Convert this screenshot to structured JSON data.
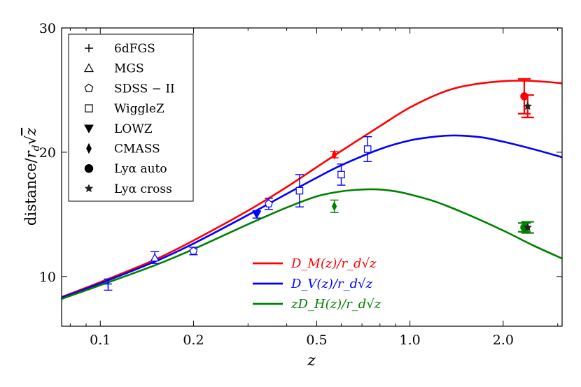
{
  "chart_data": {
    "type": "line",
    "title": "",
    "xlabel": "z",
    "ylabel": "distance/r_d√z",
    "ylabel_prefix": "distance/",
    "ylabel_r": "r",
    "ylabel_d": "d",
    "ylabel_z": "z",
    "xscale": "log",
    "xlim": [
      0.075,
      3.1
    ],
    "ylim": [
      6,
      30
    ],
    "xticks": [
      0.1,
      0.2,
      0.5,
      1.0,
      2.0
    ],
    "xtick_labels": [
      "0.1",
      "0.2",
      "0.5",
      "1.0",
      "2.0"
    ],
    "yticks": [
      10,
      20,
      30
    ],
    "ytick_labels": [
      "10",
      "20",
      "30"
    ],
    "grid": false,
    "colors": {
      "red": "#ff0000",
      "blue": "#0000ff",
      "green": "#008000"
    },
    "series": [
      {
        "name": "D_M(z)/r_d√z",
        "color": "#ff0000",
        "x": [
          0.075,
          0.1,
          0.15,
          0.2,
          0.3,
          0.4,
          0.5,
          0.6,
          0.8,
          1.0,
          1.3,
          1.6,
          2.0,
          2.4,
          2.8,
          3.1
        ],
        "y": [
          8.35,
          9.55,
          11.35,
          12.9,
          15.3,
          17.2,
          18.8,
          20.1,
          22.1,
          23.6,
          24.9,
          25.45,
          25.72,
          25.75,
          25.65,
          25.55
        ]
      },
      {
        "name": "D_V(z)/r_d√z",
        "color": "#0000ff",
        "x": [
          0.075,
          0.1,
          0.15,
          0.2,
          0.3,
          0.4,
          0.5,
          0.6,
          0.8,
          1.0,
          1.2,
          1.4,
          1.7,
          2.0,
          2.5,
          3.1
        ],
        "y": [
          8.3,
          9.45,
          11.2,
          12.65,
          14.95,
          16.65,
          17.95,
          18.95,
          20.25,
          20.95,
          21.25,
          21.35,
          21.2,
          20.85,
          20.25,
          19.6
        ]
      },
      {
        "name": "zD_H(z)/r_d√z",
        "color": "#008000",
        "x": [
          0.075,
          0.1,
          0.15,
          0.2,
          0.3,
          0.4,
          0.5,
          0.6,
          0.7,
          0.8,
          0.9,
          1.0,
          1.2,
          1.5,
          2.0,
          2.5,
          3.1
        ],
        "y": [
          8.2,
          9.3,
          10.9,
          12.2,
          14.2,
          15.55,
          16.45,
          16.85,
          17.0,
          17.0,
          16.85,
          16.6,
          16.05,
          15.1,
          13.7,
          12.5,
          11.45
        ]
      }
    ],
    "measurements": [
      {
        "label": "6dFGS",
        "marker": "plus",
        "z": 0.106,
        "value": 9.4,
        "err_lo": 0.5,
        "err_hi": 0.4,
        "color": "#0000ff"
      },
      {
        "label": "MGS",
        "marker": "triangle",
        "z": 0.15,
        "value": 11.5,
        "err_lo": 0.45,
        "err_hi": 0.5,
        "color": "#0000ff"
      },
      {
        "label": "SDSS − II",
        "marker": "pentagon",
        "z": 0.2,
        "value": 12.05,
        "err_lo": 0.3,
        "err_hi": 0.3,
        "color": "#0000ff"
      },
      {
        "label": "SDSS − II",
        "marker": "pentagon",
        "z": 0.35,
        "value": 15.85,
        "err_lo": 0.45,
        "err_hi": 0.45,
        "color": "#0000ff"
      },
      {
        "label": "WiggleZ",
        "marker": "square",
        "z": 0.44,
        "value": 16.9,
        "err_lo": 1.3,
        "err_hi": 1.3,
        "color": "#0000ff"
      },
      {
        "label": "WiggleZ",
        "marker": "square",
        "z": 0.6,
        "value": 18.2,
        "err_lo": 0.85,
        "err_hi": 0.85,
        "color": "#0000ff"
      },
      {
        "label": "WiggleZ",
        "marker": "square",
        "z": 0.73,
        "value": 20.25,
        "err_lo": 1.0,
        "err_hi": 1.0,
        "color": "#0000ff"
      },
      {
        "label": "LOWZ",
        "marker": "triangle_down",
        "z": 0.32,
        "value": 15.0,
        "err_lo": 0.3,
        "err_hi": 0.3,
        "color": "#0000ff"
      },
      {
        "label": "CMASS",
        "marker": "diamond",
        "z": 0.57,
        "value": 19.8,
        "err_lo": 0.25,
        "err_hi": 0.25,
        "color": "#ff0000"
      },
      {
        "label": "CMASS",
        "marker": "diamond",
        "z": 0.57,
        "value": 15.65,
        "err_lo": 0.5,
        "err_hi": 0.5,
        "color": "#008000"
      },
      {
        "label": "Lyα auto",
        "marker": "circle",
        "z": 2.34,
        "value": 24.5,
        "err_lo": 1.4,
        "err_hi": 1.4,
        "color": "#ff0000"
      },
      {
        "label": "Lyα auto",
        "marker": "circle",
        "z": 2.34,
        "value": 13.95,
        "err_lo": 0.35,
        "err_hi": 0.35,
        "color": "#008000"
      },
      {
        "label": "Lyα cross",
        "marker": "star",
        "z": 2.4,
        "value": 23.7,
        "err_lo": 0.9,
        "err_hi": 0.9,
        "color": "#ff0000"
      },
      {
        "label": "Lyα cross",
        "marker": "star",
        "z": 2.4,
        "value": 13.95,
        "err_lo": 0.45,
        "err_hi": 0.45,
        "color": "#008000"
      }
    ],
    "marker_legend": [
      {
        "marker": "plus",
        "label": "6dFGS"
      },
      {
        "marker": "triangle",
        "label": "MGS"
      },
      {
        "marker": "pentagon",
        "label": "SDSS − II"
      },
      {
        "marker": "square",
        "label": "WiggleZ"
      },
      {
        "marker": "triangle_down",
        "label": "LOWZ"
      },
      {
        "marker": "diamond",
        "label": "CMASS"
      },
      {
        "marker": "circle",
        "label": "Lyα auto"
      },
      {
        "marker": "star",
        "label": "Lyα cross"
      }
    ],
    "curve_legend": [
      {
        "label": "D_M(z)/r_d√z",
        "color": "#ff0000"
      },
      {
        "label": "D_V(z)/r_d√z",
        "color": "#0000ff"
      },
      {
        "label": "zD_H(z)/r_d√z",
        "color": "#008000"
      }
    ]
  }
}
